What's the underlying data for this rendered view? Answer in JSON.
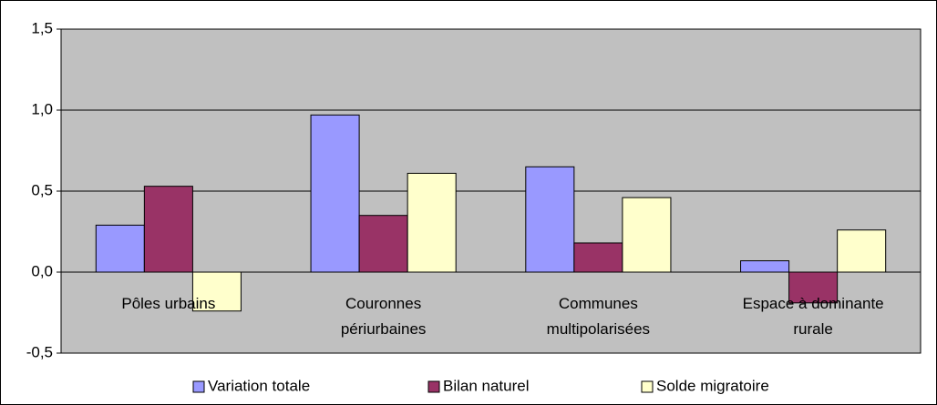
{
  "chart_data": {
    "type": "bar",
    "categories": [
      "Pôles urbains",
      "Couronnes périurbaines",
      "Communes multipolarisées",
      "Espace à dominante rurale"
    ],
    "series": [
      {
        "name": "Variation totale",
        "color": "#9999ff",
        "values": [
          0.29,
          0.97,
          0.65,
          0.07
        ]
      },
      {
        "name": "Bilan naturel",
        "color": "#993366",
        "values": [
          0.53,
          0.35,
          0.18,
          -0.19
        ]
      },
      {
        "name": "Solde migratoire",
        "color": "#ffffcc",
        "values": [
          -0.24,
          0.61,
          0.46,
          0.26
        ]
      }
    ],
    "ylim": [
      -0.5,
      1.5
    ],
    "yticks": [
      {
        "value": -0.5,
        "label": "-0,5"
      },
      {
        "value": 0,
        "label": "0,0"
      },
      {
        "value": 0.5,
        "label": "0,5"
      },
      {
        "value": 1,
        "label": "1,0"
      },
      {
        "value": 1.5,
        "label": "1,5"
      }
    ],
    "grid": true,
    "legend": "bottom",
    "plot_background": "#c0c0c0"
  }
}
